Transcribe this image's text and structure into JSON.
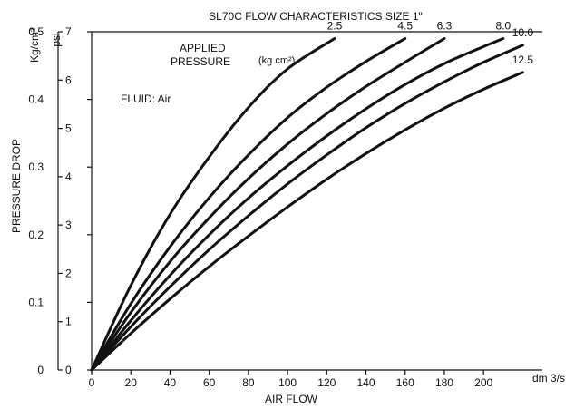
{
  "chart_data": {
    "type": "line",
    "title": "SL70C FLOW CHARACTERISTICS SIZE 1\"",
    "xlabel": "AIR FLOW",
    "x_unit": "dm 3/s",
    "ylabel": "PRESSURE DROP",
    "y_unit_left": "Kg/cm²",
    "y_unit_right": "psi",
    "xlim": [
      0,
      230
    ],
    "ylim": [
      0,
      0.5
    ],
    "psi_lim": [
      0,
      7
    ],
    "x_ticks": [
      "0",
      "20",
      "40",
      "60",
      "80",
      "100",
      "120",
      "140",
      "160",
      "180",
      "200"
    ],
    "y_ticks": [
      "0",
      "0.1",
      "0.2",
      "0.3",
      "0.4",
      "0.5"
    ],
    "psi_ticks": [
      "0",
      "1",
      "2",
      "3",
      "4",
      "5",
      "6",
      "7"
    ],
    "legend_title_line1": "APPLIED",
    "legend_title_line2": "PRESSURE",
    "legend_unit": "(kg cm²)",
    "fluid_note": "FLUID: Air",
    "series": [
      {
        "name": "2.5",
        "x": [
          0,
          20,
          40,
          60,
          80,
          100,
          124
        ],
        "y": [
          0,
          0.125,
          0.23,
          0.315,
          0.388,
          0.445,
          0.49
        ]
      },
      {
        "name": "4.5",
        "x": [
          0,
          20,
          40,
          60,
          80,
          100,
          120,
          140,
          160
        ],
        "y": [
          0,
          0.098,
          0.182,
          0.255,
          0.318,
          0.373,
          0.418,
          0.456,
          0.49
        ]
      },
      {
        "name": "6.3",
        "x": [
          0,
          20,
          40,
          60,
          80,
          100,
          120,
          140,
          160,
          180
        ],
        "y": [
          0,
          0.085,
          0.16,
          0.225,
          0.283,
          0.334,
          0.379,
          0.419,
          0.455,
          0.49
        ]
      },
      {
        "name": "8.0",
        "x": [
          0,
          20,
          40,
          60,
          80,
          100,
          120,
          140,
          160,
          180,
          200,
          210
        ],
        "y": [
          0,
          0.073,
          0.14,
          0.2,
          0.254,
          0.302,
          0.346,
          0.386,
          0.422,
          0.453,
          0.478,
          0.49
        ]
      },
      {
        "name": "10.0",
        "x": [
          0,
          20,
          40,
          60,
          80,
          100,
          120,
          140,
          160,
          180,
          200,
          220
        ],
        "y": [
          0,
          0.064,
          0.123,
          0.178,
          0.228,
          0.275,
          0.318,
          0.358,
          0.394,
          0.426,
          0.455,
          0.48
        ]
      },
      {
        "name": "12.5",
        "x": [
          0,
          20,
          40,
          60,
          80,
          100,
          120,
          140,
          160,
          180,
          200,
          220
        ],
        "y": [
          0,
          0.054,
          0.105,
          0.153,
          0.198,
          0.241,
          0.282,
          0.32,
          0.355,
          0.387,
          0.415,
          0.44
        ]
      }
    ]
  }
}
